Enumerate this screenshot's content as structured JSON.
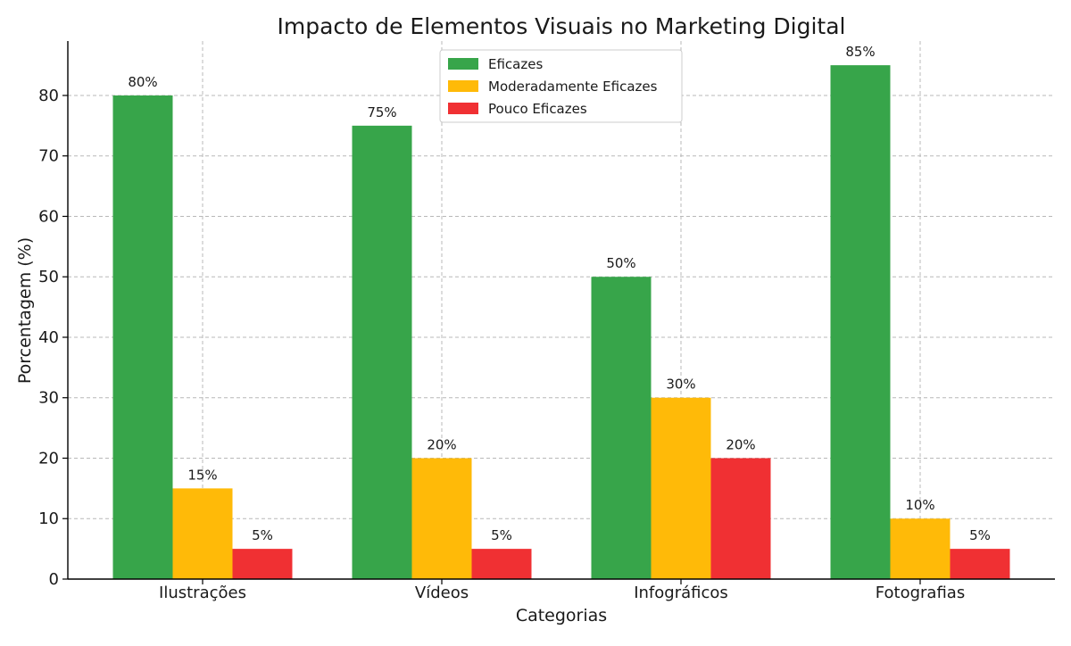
{
  "chart_data": {
    "type": "bar",
    "title": "Impacto de Elementos Visuais no Marketing Digital",
    "xlabel": "Categorias",
    "ylabel": "Porcentagem (%)",
    "categories": [
      "Ilustrações",
      "Vídeos",
      "Infográficos",
      "Fotografias"
    ],
    "series": [
      {
        "name": "Eficazes",
        "values": [
          80,
          75,
          50,
          85
        ],
        "color": "#37a54a"
      },
      {
        "name": "Moderadamente Eficazes",
        "values": [
          15,
          20,
          30,
          10
        ],
        "color": "#ffba08"
      },
      {
        "name": "Pouco Eficazes",
        "values": [
          5,
          5,
          20,
          5
        ],
        "color": "#f03033"
      }
    ],
    "data_labels": [
      [
        "80%",
        "75%",
        "50%",
        "85%"
      ],
      [
        "15%",
        "20%",
        "30%",
        "10%"
      ],
      [
        "5%",
        "5%",
        "20%",
        "5%"
      ]
    ],
    "ylim": [
      0,
      89
    ],
    "yticks": [
      0,
      10,
      20,
      30,
      40,
      50,
      60,
      70,
      80
    ],
    "grid": true,
    "legend_position": "top-center"
  }
}
